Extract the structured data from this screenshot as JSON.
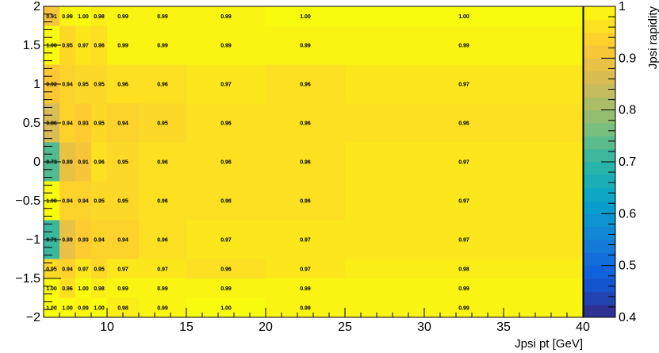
{
  "chart_data": {
    "type": "heatmap",
    "xlabel": "Jpsi pt [GeV]",
    "ylabel": "",
    "zlabel": "Jpsi rapidity",
    "x_edges": [
      6,
      7,
      8,
      9,
      10,
      12,
      15,
      20,
      25,
      40
    ],
    "y_edges": [
      -2,
      -1.75,
      -1.5,
      -1.25,
      -0.75,
      -0.25,
      0.25,
      0.75,
      1.25,
      1.75,
      2
    ],
    "xlim": [
      6,
      40
    ],
    "ylim": [
      -2,
      2
    ],
    "zlim": [
      0.4,
      1
    ],
    "x_ticks": [
      10,
      15,
      20,
      25,
      30,
      35,
      40
    ],
    "y_ticks": [
      -2,
      -1.5,
      -1,
      -0.5,
      0,
      0.5,
      1,
      1.5,
      2
    ],
    "y_tick_labels": [
      "−2",
      "−1.5",
      "−1",
      "−0.5",
      "0",
      "0.5",
      "1",
      "1.5",
      "2"
    ],
    "z_ticks": [
      0.4,
      0.5,
      0.6,
      0.7,
      0.8,
      0.9,
      1
    ],
    "values": [
      [
        1.0,
        1.0,
        0.99,
        1.0,
        0.98,
        0.99,
        1.0,
        0.99,
        0.99
      ],
      [
        1.0,
        0.96,
        1.0,
        0.98,
        0.99,
        0.99,
        0.99,
        0.99,
        0.99
      ],
      [
        0.95,
        0.94,
        0.97,
        0.95,
        0.97,
        0.97,
        0.96,
        0.97,
        0.98
      ],
      [
        0.71,
        0.89,
        0.93,
        0.94,
        0.94,
        0.96,
        0.97,
        0.97,
        0.97
      ],
      [
        1.0,
        0.94,
        0.94,
        0.95,
        0.95,
        0.96,
        0.96,
        0.96,
        0.97
      ],
      [
        0.73,
        0.89,
        0.91,
        0.96,
        0.95,
        0.96,
        0.96,
        0.96,
        0.97
      ],
      [
        0.86,
        0.94,
        0.93,
        0.95,
        0.94,
        0.95,
        0.96,
        0.96,
        0.96
      ],
      [
        0.92,
        0.94,
        0.95,
        0.95,
        0.96,
        0.96,
        0.97,
        0.96,
        0.97
      ],
      [
        1.0,
        0.95,
        0.97,
        0.96,
        0.99,
        0.99,
        0.99,
        0.99,
        0.99
      ],
      [
        0.91,
        0.99,
        1.0,
        0.98,
        0.99,
        0.99,
        0.99,
        1.0,
        1.0
      ]
    ],
    "value_labels": [
      [
        "1.00",
        "1.00",
        "0.99",
        "1.00",
        "0.98",
        "0.99",
        "1.00",
        "0.99",
        "0.99"
      ],
      [
        "1.00",
        "0.96",
        "1.00",
        "0.98",
        "0.99",
        "0.99",
        "0.99",
        "0.99",
        "0.99"
      ],
      [
        "0.95",
        "0.94",
        "0.97",
        "0.95",
        "0.97",
        "0.97",
        "0.96",
        "0.97",
        "0.98"
      ],
      [
        "0.71",
        "0.89",
        "0.93",
        "0.94",
        "0.94",
        "0.96",
        "0.97",
        "0.97",
        "0.97"
      ],
      [
        "1.00",
        "0.94",
        "0.94",
        "0.95",
        "0.95",
        "0.96",
        "0.96",
        "0.96",
        "0.97"
      ],
      [
        "0.73",
        "0.89",
        "0.91",
        "0.96",
        "0.95",
        "0.96",
        "0.96",
        "0.96",
        "0.97"
      ],
      [
        "0.86",
        "0.94",
        "0.93",
        "0.95",
        "0.94",
        "0.95",
        "0.96",
        "0.96",
        "0.96"
      ],
      [
        "0.92",
        "0.94",
        "0.95",
        "0.95",
        "0.96",
        "0.96",
        "0.97",
        "0.96",
        "0.97"
      ],
      [
        "1.00",
        "0.95",
        "0.97",
        "0.96",
        "0.99",
        "0.99",
        "0.99",
        "0.99",
        "0.99"
      ],
      [
        "0.91",
        "0.99",
        "1.00",
        "0.98",
        "0.99",
        "0.99",
        "0.99",
        "1.00",
        "1.00"
      ]
    ],
    "colormap": [
      "#352a87",
      "#0f5cdd",
      "#1481d6",
      "#06a4ca",
      "#2eb7a4",
      "#87bf77",
      "#d1bb59",
      "#fec832",
      "#f9fb0e"
    ],
    "grid": false,
    "legend": "colorbar-right"
  }
}
